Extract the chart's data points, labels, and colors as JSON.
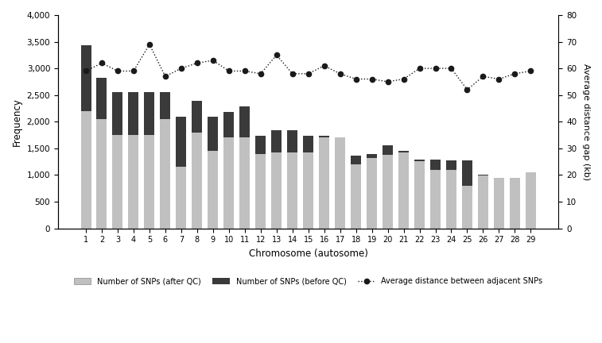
{
  "chromosomes": [
    1,
    2,
    3,
    4,
    5,
    6,
    7,
    8,
    9,
    10,
    11,
    12,
    13,
    14,
    15,
    16,
    17,
    18,
    19,
    20,
    21,
    22,
    23,
    24,
    25,
    26,
    27,
    28,
    29
  ],
  "snps_after_qc": [
    2200,
    2050,
    1750,
    1750,
    1750,
    2050,
    1150,
    1800,
    1450,
    1700,
    1700,
    1390,
    1430,
    1430,
    1420,
    1700,
    1700,
    1200,
    1320,
    1380,
    1430,
    1260,
    1090,
    1090,
    800,
    1000,
    940,
    940,
    1050
  ],
  "snps_before_qc": [
    3430,
    2820,
    2560,
    2560,
    2560,
    2560,
    2090,
    2390,
    2090,
    2190,
    2280,
    1740,
    1840,
    1840,
    1740,
    1740,
    1710,
    1370,
    1390,
    1550,
    1460,
    1290,
    1290,
    1280,
    1280,
    990,
    940,
    940,
    1050
  ],
  "avg_distance": [
    59,
    62,
    59,
    59,
    69,
    57,
    60,
    62,
    63,
    59,
    59,
    58,
    65,
    58,
    58,
    61,
    58,
    56,
    56,
    55,
    56,
    60,
    60,
    60,
    52,
    57,
    56,
    58,
    59
  ],
  "ylabel_left": "Frequency",
  "ylabel_right": "Average distance gap (kb)",
  "xlabel": "Chromosome (autosome)",
  "ylim_left": [
    0,
    4000
  ],
  "ylim_right": [
    0,
    80
  ],
  "yticks_left": [
    0,
    500,
    1000,
    1500,
    2000,
    2500,
    3000,
    3500,
    4000
  ],
  "yticks_right": [
    0,
    10,
    20,
    30,
    40,
    50,
    60,
    70,
    80
  ],
  "bar_color_after": "#c0c0c0",
  "bar_color_before": "#3a3a3a",
  "dot_color": "#1a1a1a",
  "legend_after": "Number of SNPs (after QC)",
  "legend_before": "Number of SNPs (before QC)",
  "legend_dot": "Average distance between adjacent SNPs",
  "fig_width": 7.57,
  "fig_height": 4.32,
  "dpi": 100
}
